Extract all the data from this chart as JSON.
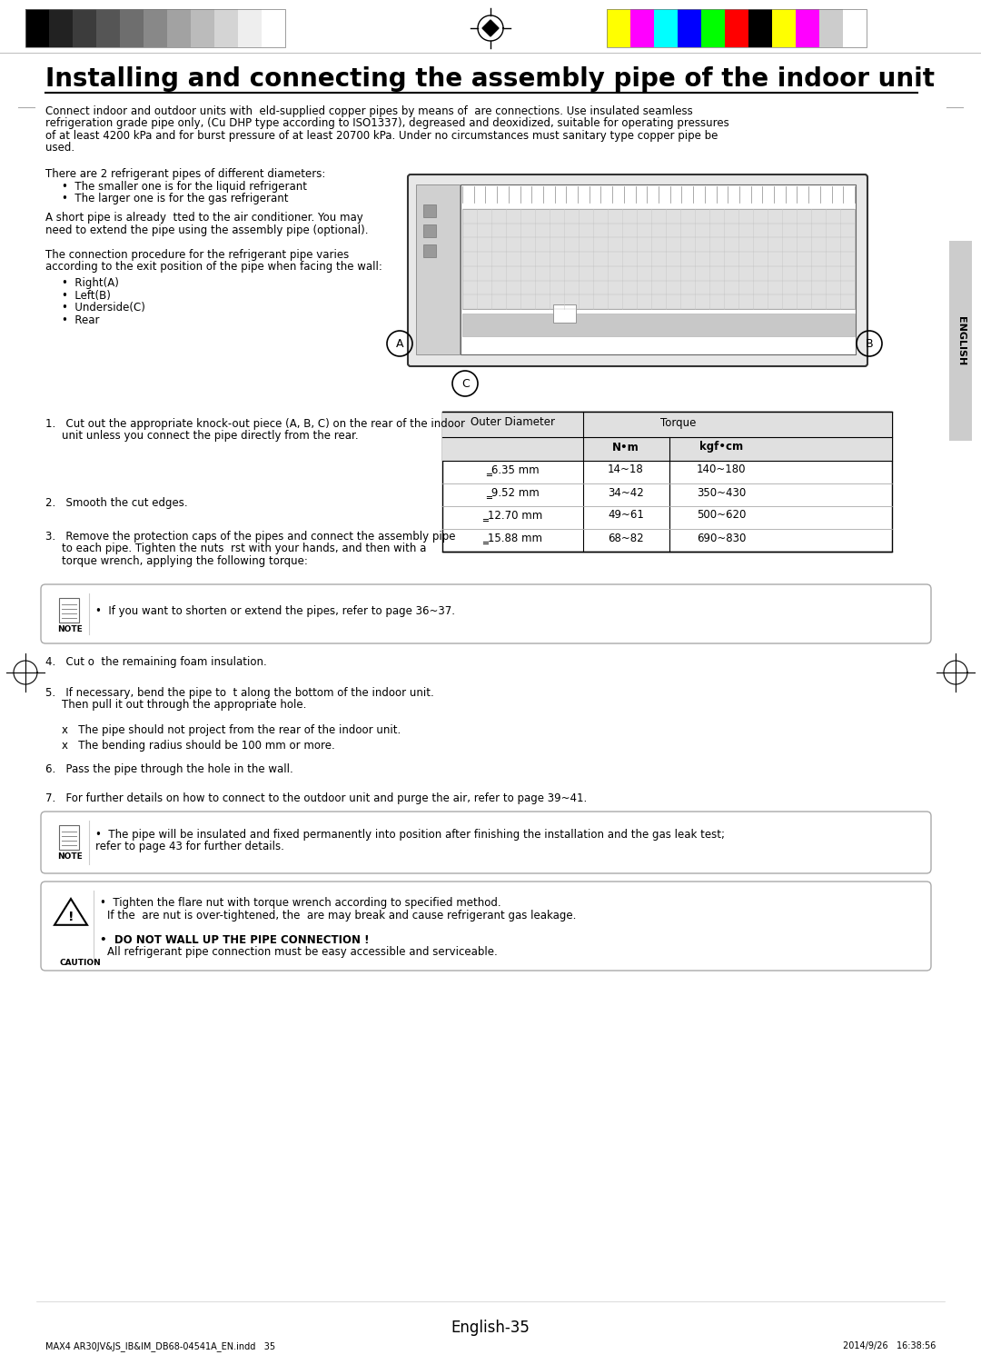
{
  "page_bg": "#ffffff",
  "title": "Installing and connecting the assembly pipe of the indoor unit",
  "title_fontsize": 20,
  "body_fontsize": 8.5,
  "intro_lines": [
    "Connect indoor and outdoor units with  eld-supplied copper pipes by means of  are connections. Use insulated seamless",
    "refrigeration grade pipe only, (Cu DHP type according to ISO1337), degreased and deoxidized, suitable for operating pressures",
    "of at least 4200 kPa and for burst pressure of at least 20700 kPa. Under no circumstances must sanitary type copper pipe be",
    "used."
  ],
  "bullet_line0": "There are 2 refrigerant pipes of different diameters:",
  "bullet_line1": "•  The smaller one is for the liquid refrigerant",
  "bullet_line2": "•  The larger one is for the gas refrigerant",
  "short_lines": [
    "A short pipe is already  tted to the air conditioner. You may",
    "need to extend the pipe using the assembly pipe (optional)."
  ],
  "conn_lines": [
    "The connection procedure for the refrigerant pipe varies",
    "according to the exit position of the pipe when facing the wall:"
  ],
  "exit_positions": [
    "•  Right(A)",
    "•  Left(B)",
    "•  Underside(C)",
    "•  Rear"
  ],
  "step1a": "1.   Cut out the appropriate knock-out piece (A, B, C) on the rear of the indoor",
  "step1b": "unit unless you connect the pipe directly from the rear.",
  "step2": "2.   Smooth the cut edges.",
  "step3a": "3.   Remove the protection caps of the pipes and connect the assembly pipe",
  "step3b": "to each pipe. Tighten the nuts  rst with your hands, and then with a",
  "step3c": "torque wrench, applying the following torque:",
  "note1": "If you want to shorten or extend the pipes, refer to page 36~37.",
  "step4": "4.   Cut o  the remaining foam insulation.",
  "step5a": "5.   If necessary, bend the pipe to  t along the bottom of the indoor unit.",
  "step5b": "Then pull it out through the appropriate hole.",
  "step5_sub1": "x   The pipe should not project from the rear of the indoor unit.",
  "step5_sub2": "x   The bending radius should be 100 mm or more.",
  "step6": "6.   Pass the pipe through the hole in the wall.",
  "step7": "7.   For further details on how to connect to the outdoor unit and purge the air, refer to page 39~41.",
  "note2a": "•  The pipe will be insulated and fixed permanently into position after finishing the installation and the gas leak test;",
  "note2b": "refer to page 43 for further details.",
  "caut1": "•  Tighten the flare nut with torque wrench according to specified method.",
  "caut2": "If the  are nut is over-tightened, the  are may break and cause refrigerant gas leakage.",
  "caut3": "•  DO NOT WALL UP THE PIPE CONNECTION !",
  "caut4": "All refrigerant pipe connection must be easy accessible and serviceable.",
  "table_data": [
    [
      "‗6.35 mm",
      "14~18",
      "140~180"
    ],
    [
      "‗9.52 mm",
      "34~42",
      "350~430"
    ],
    [
      "‗12.70 mm",
      "49~61",
      "500~620"
    ],
    [
      "‗15.88 mm",
      "68~82",
      "690~830"
    ]
  ],
  "footer_text": "English-35",
  "footer_left": "MAX4 AR30JV&JS_IB&IM_DB68-04541A_EN.indd   35",
  "footer_right": "2014/9/26   16:38:56",
  "english_tab": "ENGLISH",
  "gray_colors": [
    "#000000",
    "#222222",
    "#3c3c3c",
    "#555555",
    "#6e6e6e",
    "#888888",
    "#a2a2a2",
    "#bbbbbb",
    "#d4d4d4",
    "#eeeeee",
    "#ffffff"
  ],
  "color_colors": [
    "#ffff00",
    "#ff00ff",
    "#00ffff",
    "#0000ff",
    "#00ff00",
    "#ff0000",
    "#000000",
    "#ffff00",
    "#ff00ff",
    "#cccccc",
    "#ffffff"
  ]
}
